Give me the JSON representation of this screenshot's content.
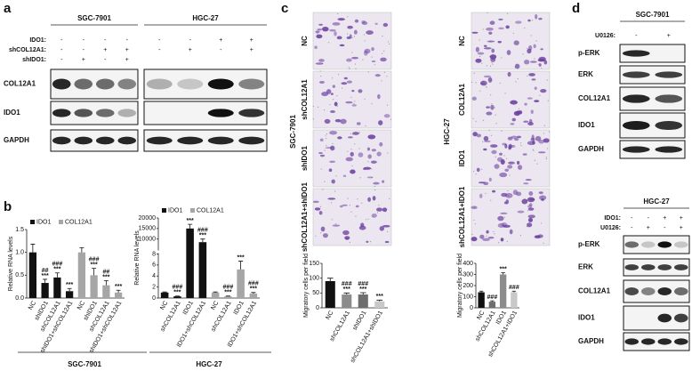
{
  "panel_labels": [
    "a",
    "b",
    "c",
    "d"
  ],
  "panel_a": {
    "row_labels": [
      "IDO1:",
      "shCOL12A1:",
      "shIDO1:"
    ],
    "proteins": [
      "COL12A1",
      "IDO1",
      "GAPDH"
    ],
    "cell_lines": [
      {
        "name": "SGC-7901",
        "signs": [
          [
            "-",
            "-",
            "-",
            "-"
          ],
          [
            "-",
            "-",
            "+",
            "+"
          ],
          [
            "-",
            "+",
            "-",
            "+"
          ]
        ]
      },
      {
        "name": "HGC-27",
        "signs": [
          [
            "-",
            "-",
            "+",
            "+"
          ],
          [
            "-",
            "+",
            "-",
            "+"
          ]
        ]
      }
    ]
  },
  "panel_b_cell_lines": [
    "SGC-7901",
    "HGC-27"
  ],
  "panel_c": {
    "cell_lines": [
      "SGC-7901",
      "HGC-27"
    ],
    "groups": [
      [
        "NC",
        "shCOL12A1",
        "shIDO1",
        "shCOL12A1+shIDO1"
      ],
      [
        "NC",
        "COL12A1",
        "IDO1",
        "shCOL12A1+IDO1"
      ]
    ]
  },
  "panel_d": [
    {
      "row_labels": [
        "U0126:"
      ],
      "proteins": [
        "p-ERK",
        "ERK",
        "COL12A1",
        "IDO1",
        "GAPDH"
      ],
      "cell_lines": [
        {
          "name": "SGC-7901",
          "signs": [
            [
              "-",
              "+"
            ]
          ]
        }
      ]
    },
    {
      "row_labels": [
        "IDO1:",
        "U0126:"
      ],
      "proteins": [
        "p-ERK",
        "ERK",
        "COL12A1",
        "IDO1",
        "GAPDH"
      ],
      "cell_lines": [
        {
          "name": "HGC-27",
          "signs": [
            [
              "-",
              "-",
              "+",
              "+"
            ],
            [
              "-",
              "+",
              "-",
              "+"
            ]
          ]
        }
      ]
    }
  ],
  "chart_data": [
    {
      "type": "bar",
      "y_label": "Relative RNA levels",
      "categories": [
        "NC",
        "shIDO1",
        "shCOL12A1",
        "shIDO1+shCOL12A1",
        "NC",
        "shIDO1",
        "shCOL12A1",
        "shIDO1+shCOL12A1"
      ],
      "series": [
        {
          "name": "IDO1",
          "color": "#111111",
          "values": [
            1.0,
            0.33,
            0.45,
            0.15,
            null,
            null,
            null,
            null
          ],
          "errors": [
            0.18,
            0.08,
            0.1,
            0.06,
            null,
            null,
            null,
            null
          ]
        },
        {
          "name": "COL12A1",
          "color": "#a6a6a6",
          "values": [
            null,
            null,
            null,
            null,
            1.0,
            0.5,
            0.28,
            0.12
          ],
          "errors": [
            null,
            null,
            null,
            null,
            0.1,
            0.15,
            0.1,
            0.05
          ]
        }
      ],
      "annotations": [
        [],
        [
          "##",
          "***"
        ],
        [
          "###",
          "***"
        ],
        [
          "***"
        ],
        [],
        [
          "###",
          "***"
        ],
        [
          "##",
          "***"
        ],
        [
          "***"
        ]
      ],
      "ylim": [
        0,
        1.5
      ],
      "yticks": [
        {
          "value": 0,
          "label": "0.0"
        },
        {
          "value": 0.5,
          "label": "0.5"
        },
        {
          "value": 1,
          "label": "1.0"
        },
        {
          "value": 1.5,
          "label": "1.5"
        }
      ]
    },
    {
      "type": "bar",
      "y_label": "Relative RNA levels",
      "categories": [
        "NC",
        "shCOL12A1",
        "IDO1",
        "IDO1+shCOL12A1",
        "NC",
        "shCOL12A1",
        "IDO1",
        "IDO1+shCOL12A1"
      ],
      "series": [
        {
          "name": "IDO1",
          "color": "#111111",
          "values": [
            1,
            0.3,
            15000,
            8500,
            null,
            null,
            null,
            null
          ],
          "errors": [
            0.1,
            0.05,
            2000,
            1500,
            null,
            null,
            null,
            null
          ]
        },
        {
          "name": "COL12A1",
          "color": "#a6a6a6",
          "values": [
            null,
            null,
            null,
            null,
            1,
            0.3,
            5.2,
            0.8
          ],
          "errors": [
            null,
            null,
            null,
            null,
            0.1,
            0.05,
            1.5,
            0.2
          ]
        }
      ],
      "annotations": [
        [],
        [
          "###",
          "***"
        ],
        [
          "***"
        ],
        [
          "###",
          "***"
        ],
        [],
        [
          "###",
          "***"
        ],
        [
          "***"
        ],
        [
          "###",
          "***"
        ]
      ],
      "ylim": [
        0,
        20000
      ],
      "axis_break": [
        8,
        5000
      ],
      "yticks": [
        0,
        2,
        4,
        6,
        8,
        10000,
        15000,
        20000
      ]
    },
    {
      "type": "bar",
      "y_label": "Migratory cells per field",
      "categories": [
        "NC",
        "shCOL12A1",
        "shIDO1",
        "shCOL12A1+shIDO1"
      ],
      "values": [
        90,
        45,
        45,
        22
      ],
      "errors": [
        10,
        5,
        6,
        4
      ],
      "colors": [
        "#111111",
        "#8c8c8c",
        "#6e6e6e",
        "#c8c8c8"
      ],
      "annotations": [
        [],
        [
          "###",
          "***"
        ],
        [
          "###",
          "***"
        ],
        [
          "***"
        ]
      ],
      "ylim": [
        0,
        150
      ],
      "yticks": [
        0,
        50,
        100,
        150
      ]
    },
    {
      "type": "bar",
      "y_label": "Migratory cells per field",
      "categories": [
        "NC",
        "shCOL12A1",
        "IDO1",
        "shCOL12A1+IDO1"
      ],
      "values": [
        140,
        55,
        300,
        140
      ],
      "errors": [
        10,
        8,
        15,
        10
      ],
      "colors": [
        "#111111",
        "#6e6e6e",
        "#8c8c8c",
        "#c8c8c8"
      ],
      "annotations": [
        [],
        [
          "###"
        ],
        [
          "***"
        ],
        [
          "###"
        ]
      ],
      "ylim": [
        0,
        400
      ],
      "yticks": [
        0,
        100,
        200,
        300,
        400
      ]
    }
  ]
}
